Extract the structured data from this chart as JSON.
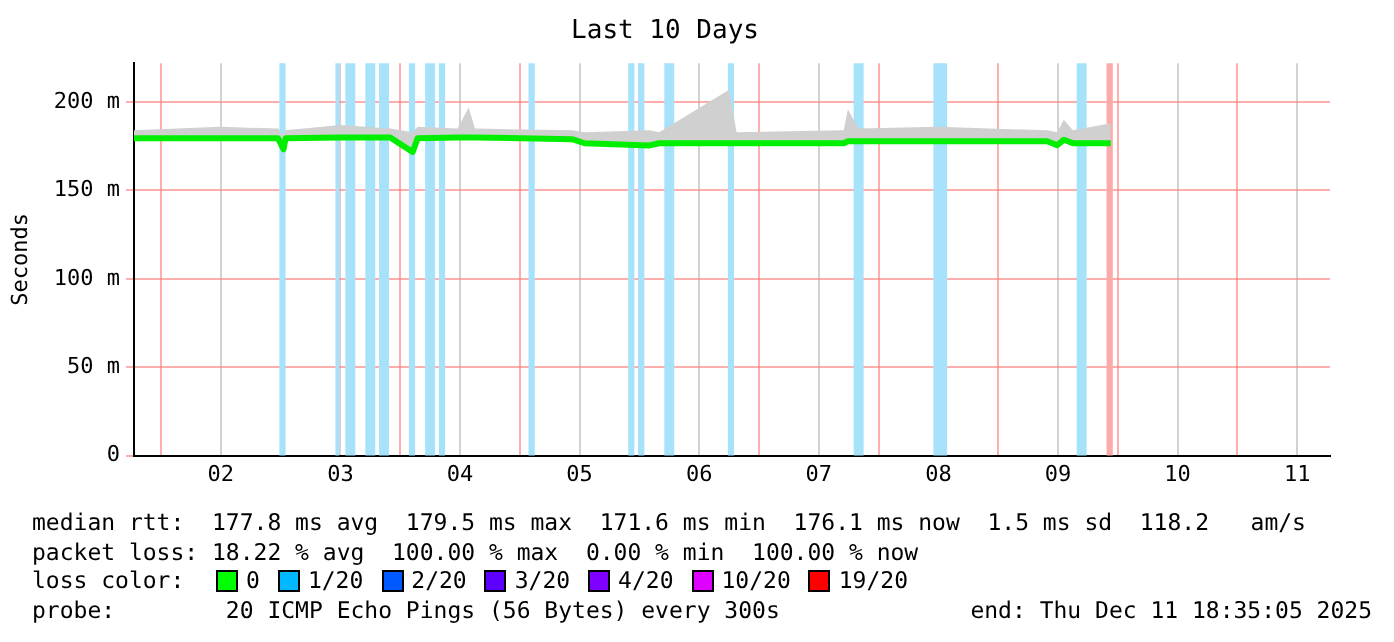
{
  "chart_data": {
    "type": "line",
    "title": "Last 10 Days",
    "ylabel": "Seconds",
    "x": [
      "2025-12-01T18:35",
      "2025-12-02T12:00",
      "2025-12-02T23:30",
      "2025-12-03T00:35",
      "2025-12-03T01:00",
      "2025-12-03T12:00",
      "2025-12-03T22:00",
      "2025-12-04T02:30",
      "2025-12-04T03:30",
      "2025-12-04T11:30",
      "2025-12-04T13:45",
      "2025-12-04T15:00",
      "2025-12-05T10:30",
      "2025-12-05T13:00",
      "2025-12-06T02:00",
      "2025-12-06T04:00",
      "2025-12-06T18:00",
      "2025-12-06T19:30",
      "2025-12-07T17:00",
      "2025-12-07T17:50",
      "2025-12-07T20:00",
      "2025-12-08T12:00",
      "2025-12-09T09:50",
      "2025-12-09T11:50",
      "2025-12-09T13:10",
      "2025-12-09T15:00",
      "2025-12-09T22:35"
    ],
    "series": [
      {
        "color": "#00ee00",
        "values": [
          179.5,
          179.5,
          179.5,
          173.3,
          179.5,
          180,
          180,
          171.8,
          179.5,
          180,
          180,
          180,
          179,
          176.7,
          175.5,
          176.7,
          176.7,
          176.7,
          176.7,
          177.8,
          177.8,
          177.8,
          177.8,
          175.6,
          178.7,
          176.7,
          176.7
        ],
        "lower": [
          179.5,
          179.5,
          179.5,
          173.3,
          179.5,
          180,
          180,
          171.8,
          179.5,
          180,
          180,
          180,
          179,
          176.7,
          175.5,
          176.7,
          176.7,
          176.7,
          176.7,
          177.8,
          177.8,
          177.8,
          177.8,
          175.6,
          178.7,
          176.7,
          176.7
        ],
        "upper": [
          184,
          186,
          185,
          181,
          184,
          187,
          185,
          183,
          186,
          185,
          197,
          185,
          184,
          183,
          184,
          183,
          207,
          183,
          184,
          196,
          185,
          186,
          184,
          183,
          190,
          184,
          188
        ]
      }
    ],
    "marker": "none",
    "line_style": "solid",
    "grid": true,
    "legend": false,
    "xlim": [
      "2025-12-01T18:35",
      "2025-12-11T18:35"
    ],
    "xticks": [
      {
        "value": "2025-12-02T00:00",
        "label": null
      },
      {
        "value": "2025-12-02T12:00",
        "label": "02"
      },
      {
        "value": "2025-12-03T00:00",
        "label": null
      },
      {
        "value": "2025-12-03T12:00",
        "label": "03"
      },
      {
        "value": "2025-12-04T00:00",
        "label": null
      },
      {
        "value": "2025-12-04T12:00",
        "label": "04"
      },
      {
        "value": "2025-12-05T00:00",
        "label": null
      },
      {
        "value": "2025-12-05T12:00",
        "label": "05"
      },
      {
        "value": "2025-12-06T00:00",
        "label": null
      },
      {
        "value": "2025-12-06T12:00",
        "label": "06"
      },
      {
        "value": "2025-12-07T00:00",
        "label": null
      },
      {
        "value": "2025-12-07T12:00",
        "label": "07"
      },
      {
        "value": "2025-12-08T00:00",
        "label": null
      },
      {
        "value": "2025-12-08T12:00",
        "label": "08"
      },
      {
        "value": "2025-12-09T00:00",
        "label": null
      },
      {
        "value": "2025-12-09T12:00",
        "label": "09"
      },
      {
        "value": "2025-12-10T00:00",
        "label": null
      },
      {
        "value": "2025-12-10T12:00",
        "label": "10"
      },
      {
        "value": "2025-12-11T00:00",
        "label": null
      },
      {
        "value": "2025-12-11T12:00",
        "label": "11"
      }
    ],
    "ylim": [
      0,
      222
    ],
    "yticks": [
      {
        "value": 0,
        "label": "0"
      },
      {
        "value": 50,
        "label": "50 m"
      },
      {
        "value": 100,
        "label": "100 m"
      },
      {
        "value": 150,
        "label": "150 m"
      },
      {
        "value": 200,
        "label": "200 m"
      }
    ],
    "bands": [
      {
        "axis": "x",
        "from": "2025-12-02T23:45",
        "to": "2025-12-03T01:00",
        "color": "#a6e3fb"
      },
      {
        "axis": "x",
        "from": "2025-12-03T11:00",
        "to": "2025-12-03T11:45",
        "color": "#a6e3fb"
      },
      {
        "axis": "x",
        "from": "2025-12-03T13:00",
        "to": "2025-12-03T15:00",
        "color": "#a6e3fb"
      },
      {
        "axis": "x",
        "from": "2025-12-03T17:00",
        "to": "2025-12-03T19:00",
        "color": "#a6e3fb"
      },
      {
        "axis": "x",
        "from": "2025-12-03T19:45",
        "to": "2025-12-03T21:45",
        "color": "#a6e3fb"
      },
      {
        "axis": "x",
        "from": "2025-12-04T01:45",
        "to": "2025-12-04T03:00",
        "color": "#a6e3fb"
      },
      {
        "axis": "x",
        "from": "2025-12-04T05:00",
        "to": "2025-12-04T07:00",
        "color": "#a6e3fb"
      },
      {
        "axis": "x",
        "from": "2025-12-04T07:45",
        "to": "2025-12-04T09:00",
        "color": "#a6e3fb"
      },
      {
        "axis": "x",
        "from": "2025-12-05T01:45",
        "to": "2025-12-05T03:00",
        "color": "#a6e3fb"
      },
      {
        "axis": "x",
        "from": "2025-12-05T21:45",
        "to": "2025-12-05T23:00",
        "color": "#a6e3fb"
      },
      {
        "axis": "x",
        "from": "2025-12-05T23:45",
        "to": "2025-12-06T01:00",
        "color": "#a6e3fb"
      },
      {
        "axis": "x",
        "from": "2025-12-06T05:00",
        "to": "2025-12-06T07:00",
        "color": "#a6e3fb"
      },
      {
        "axis": "x",
        "from": "2025-12-06T17:45",
        "to": "2025-12-06T19:00",
        "color": "#a6e3fb"
      },
      {
        "axis": "x",
        "from": "2025-12-07T19:00",
        "to": "2025-12-07T21:00",
        "color": "#a6e3fb"
      },
      {
        "axis": "x",
        "from": "2025-12-08T11:00",
        "to": "2025-12-08T13:45",
        "color": "#a6e3fb"
      },
      {
        "axis": "x",
        "from": "2025-12-09T15:45",
        "to": "2025-12-09T17:45",
        "color": "#a6e3fb"
      },
      {
        "axis": "x",
        "from": "2025-12-09T21:45",
        "to": "2025-12-09T23:00",
        "color": "#ffaaaa"
      }
    ],
    "annotations": [
      "median rtt:  177.8 ms avg  179.5 ms max  171.6 ms min  176.1 ms now  1.5 ms sd  118.2   am/s",
      "packet loss: 18.22 % avg  100.00 % max  0.00 % min  100.00 % now",
      "loss color:",
      "0",
      "1/20",
      "2/20",
      "3/20",
      "4/20",
      "10/20",
      "19/20",
      "probe:        20 ICMP Echo Pings (56 Bytes) every 300s",
      "end: Thu Dec 11 18:35:05 2025"
    ]
  }
}
